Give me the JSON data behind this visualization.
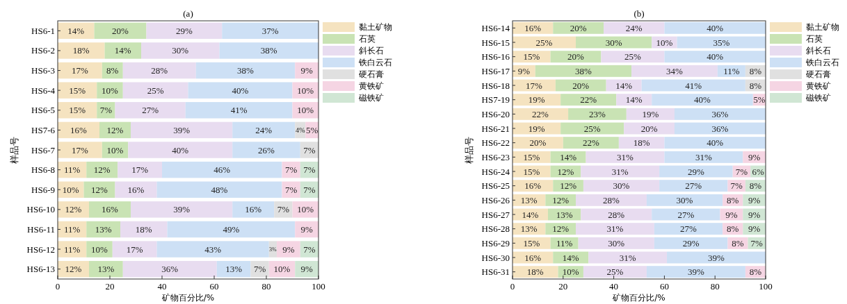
{
  "chart_data": [
    {
      "type": "bar",
      "orientation": "horizontal",
      "stacked": true,
      "title": "(a)",
      "xlabel": "矿物百分比/%",
      "ylabel": "样品号",
      "legend": "right",
      "xlim": [
        0,
        100
      ],
      "xticks": [
        0,
        20,
        40,
        60,
        80,
        100
      ],
      "categories": [
        "HS6-1",
        "HS6-2",
        "HS6-3",
        "HS6-4",
        "HS6-5",
        "HS7-6",
        "HS6-7",
        "HS6-8",
        "HS6-9",
        "HS6-10",
        "HS6-11",
        "HS6-12",
        "HS6-13"
      ],
      "series": [
        {
          "name": "黏土矿物",
          "color": "#f5e3c0",
          "values": [
            14,
            18,
            17,
            15,
            15,
            16,
            17,
            11,
            10,
            12,
            11,
            11,
            12
          ],
          "value_labels": [
            "14%",
            "18%",
            "17%",
            "15%",
            "15%",
            "16%",
            "17%",
            "11%",
            "10%",
            "12%",
            "11%",
            "11%",
            "12%"
          ]
        },
        {
          "name": "石英",
          "color": "#c9e3b4",
          "values": [
            20,
            14,
            8,
            10,
            7,
            12,
            10,
            12,
            12,
            16,
            13,
            10,
            13
          ],
          "value_labels": [
            "20%",
            "14%",
            "8%",
            "10%",
            "7%",
            "12%",
            "10%",
            "12%",
            "12%",
            "16%",
            "13%",
            "10%",
            "13%"
          ]
        },
        {
          "name": "斜长石",
          "color": "#e8dcf0",
          "values": [
            29,
            30,
            28,
            25,
            27,
            39,
            40,
            17,
            16,
            39,
            18,
            17,
            36
          ],
          "value_labels": [
            "29%",
            "30%",
            "28%",
            "25%",
            "27%",
            "39%",
            "40%",
            "17%",
            "16%",
            "39%",
            "18%",
            "17%",
            "36%"
          ]
        },
        {
          "name": "铁白云石",
          "color": "#cde0f5",
          "values": [
            37,
            38,
            38,
            40,
            41,
            24,
            26,
            46,
            48,
            16,
            49,
            43,
            13
          ],
          "value_labels": [
            "37%",
            "38%",
            "38%",
            "40%",
            "41%",
            "24%",
            "26%",
            "46%",
            "48%",
            "16%",
            "49%",
            "43%",
            "13%"
          ]
        },
        {
          "name": "硬石膏",
          "color": "#e0e0e0",
          "values": [
            null,
            null,
            null,
            null,
            null,
            4,
            7,
            null,
            null,
            7,
            null,
            3,
            7
          ],
          "value_labels": [
            null,
            null,
            null,
            null,
            null,
            "4%",
            "7%",
            null,
            null,
            "7%",
            null,
            "3%",
            "7%"
          ]
        },
        {
          "name": "黄铁矿",
          "color": "#f5d5e3",
          "values": [
            null,
            null,
            9,
            10,
            10,
            5,
            null,
            7,
            7,
            10,
            9,
            9,
            10
          ],
          "value_labels": [
            null,
            null,
            "9%",
            "10%",
            "10%",
            "5%",
            null,
            "7%",
            "7%",
            "10%",
            "9%",
            "9%",
            "10%"
          ]
        },
        {
          "name": "磁铁矿",
          "color": "#d0e6d4",
          "values": [
            null,
            null,
            null,
            null,
            null,
            null,
            null,
            7,
            7,
            null,
            null,
            7,
            9
          ],
          "value_labels": [
            null,
            null,
            null,
            null,
            null,
            null,
            null,
            "7%",
            "7%",
            null,
            null,
            "7%",
            "9%"
          ]
        }
      ]
    },
    {
      "type": "bar",
      "orientation": "horizontal",
      "stacked": true,
      "title": "(b)",
      "xlabel": "矿物百分比/%",
      "ylabel": "样品号",
      "legend": "right",
      "xlim": [
        0,
        100
      ],
      "xticks": [
        0,
        20,
        40,
        60,
        80,
        100
      ],
      "categories": [
        "HS6-14",
        "HS6-15",
        "HS6-16",
        "HS6-17",
        "HS6-18",
        "HS7-19",
        "HS6-20",
        "HS6-21",
        "HS6-22",
        "HS6-23",
        "HS6-24",
        "HS6-25",
        "HS6-26",
        "HS6-27",
        "HS6-28",
        "HS6-29",
        "HS6-30",
        "HS6-31"
      ],
      "series": [
        {
          "name": "黏土矿物",
          "color": "#f5e3c0",
          "values": [
            16,
            25,
            15,
            9,
            17,
            19,
            22,
            19,
            20,
            15,
            15,
            16,
            13,
            14,
            13,
            15,
            16,
            18
          ],
          "value_labels": [
            "16%",
            "25%",
            "15%",
            "9%",
            "17%",
            "19%",
            "22%",
            "19%",
            "20%",
            "15%",
            "15%",
            "16%",
            "13%",
            "14%",
            "13%",
            "15%",
            "16%",
            "18%"
          ]
        },
        {
          "name": "石英",
          "color": "#c9e3b4",
          "values": [
            20,
            30,
            20,
            38,
            20,
            22,
            23,
            25,
            22,
            14,
            12,
            12,
            12,
            13,
            12,
            11,
            14,
            10
          ],
          "value_labels": [
            "20%",
            "30%",
            "20%",
            "38%",
            "20%",
            "22%",
            "23%",
            "25%",
            "22%",
            "14%",
            "12%",
            "12%",
            "12%",
            "13%",
            "12%",
            "11%",
            "14%",
            "10%"
          ]
        },
        {
          "name": "斜长石",
          "color": "#e8dcf0",
          "values": [
            24,
            10,
            25,
            34,
            14,
            14,
            19,
            20,
            18,
            31,
            31,
            30,
            28,
            28,
            31,
            30,
            31,
            25
          ],
          "value_labels": [
            "24%",
            "10%",
            "25%",
            "34%",
            "14%",
            "14%",
            "19%",
            "20%",
            "18%",
            "31%",
            "31%",
            "30%",
            "28%",
            "28%",
            "31%",
            "30%",
            "31%",
            "25%"
          ]
        },
        {
          "name": "铁白云石",
          "color": "#cde0f5",
          "values": [
            40,
            35,
            40,
            11,
            41,
            40,
            36,
            36,
            40,
            31,
            29,
            27,
            30,
            27,
            27,
            29,
            39,
            39
          ],
          "value_labels": [
            "40%",
            "35%",
            "40%",
            "11%",
            "41%",
            "40%",
            "36%",
            "36%",
            "40%",
            "31%",
            "29%",
            "27%",
            "30%",
            "27%",
            "27%",
            "29%",
            "39%",
            "39%"
          ]
        },
        {
          "name": "硬石膏",
          "color": "#e0e0e0",
          "values": [
            null,
            null,
            null,
            8,
            8,
            null,
            null,
            null,
            null,
            null,
            null,
            null,
            null,
            null,
            null,
            null,
            null,
            null
          ],
          "value_labels": [
            null,
            null,
            null,
            "8%",
            "8%",
            null,
            null,
            null,
            null,
            null,
            null,
            null,
            null,
            null,
            null,
            null,
            null,
            null
          ]
        },
        {
          "name": "黄铁矿",
          "color": "#f5d5e3",
          "values": [
            null,
            null,
            null,
            null,
            null,
            5,
            null,
            null,
            null,
            9,
            7,
            7,
            8,
            9,
            8,
            8,
            null,
            8
          ],
          "value_labels": [
            null,
            null,
            null,
            null,
            null,
            "5%",
            null,
            null,
            null,
            "9%",
            "7%",
            "7%",
            "8%",
            "9%",
            "8%",
            "8%",
            null,
            "8%"
          ]
        },
        {
          "name": "磁铁矿",
          "color": "#d0e6d4",
          "values": [
            null,
            null,
            null,
            null,
            null,
            null,
            null,
            null,
            null,
            null,
            6,
            8,
            9,
            9,
            9,
            7,
            null,
            null
          ],
          "value_labels": [
            null,
            null,
            null,
            null,
            null,
            null,
            null,
            null,
            null,
            null,
            "6%",
            "8%",
            "9%",
            "9%",
            "9%",
            "7%",
            null,
            null
          ]
        }
      ]
    }
  ]
}
